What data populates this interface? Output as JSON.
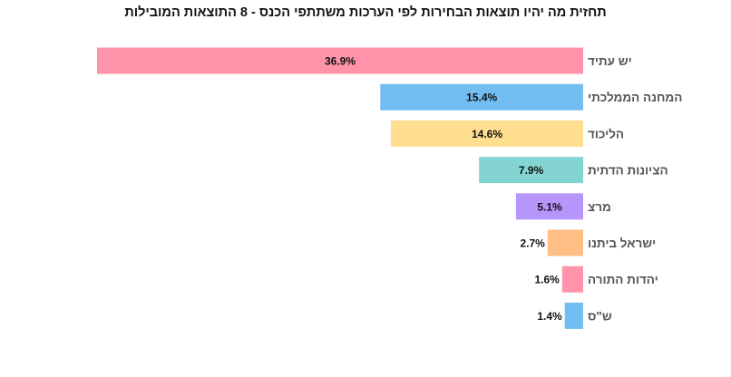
{
  "chart_data": {
    "type": "bar",
    "orientation": "horizontal",
    "title": "תחזית מה יהיו תוצאות הבחירות לפי הערכות משתתפי הכנס - 8 התוצאות המובילות",
    "xlabel": "",
    "ylabel": "",
    "xlim": [
      0,
      36.9
    ],
    "grid": false,
    "legend": "none",
    "categories": [
      "יש עתיד",
      "המחנה הממלכתי",
      "הליכוד",
      "הציונות הדתית",
      "מרצ",
      "ישראל ביתנו",
      "יהדות התורה",
      "ש\"ס"
    ],
    "values": [
      36.9,
      15.4,
      14.6,
      7.9,
      5.1,
      2.7,
      1.6,
      1.4
    ],
    "value_labels": [
      "36.9%",
      "15.4%",
      "14.6%",
      "7.9%",
      "5.1%",
      "2.7%",
      "1.6%",
      "1.4%"
    ],
    "colors": [
      "#ff93aa",
      "#72bdf2",
      "#ffde8f",
      "#83d4d2",
      "#b796fb",
      "#ffbe83",
      "#ff93aa",
      "#72bdf2"
    ]
  }
}
